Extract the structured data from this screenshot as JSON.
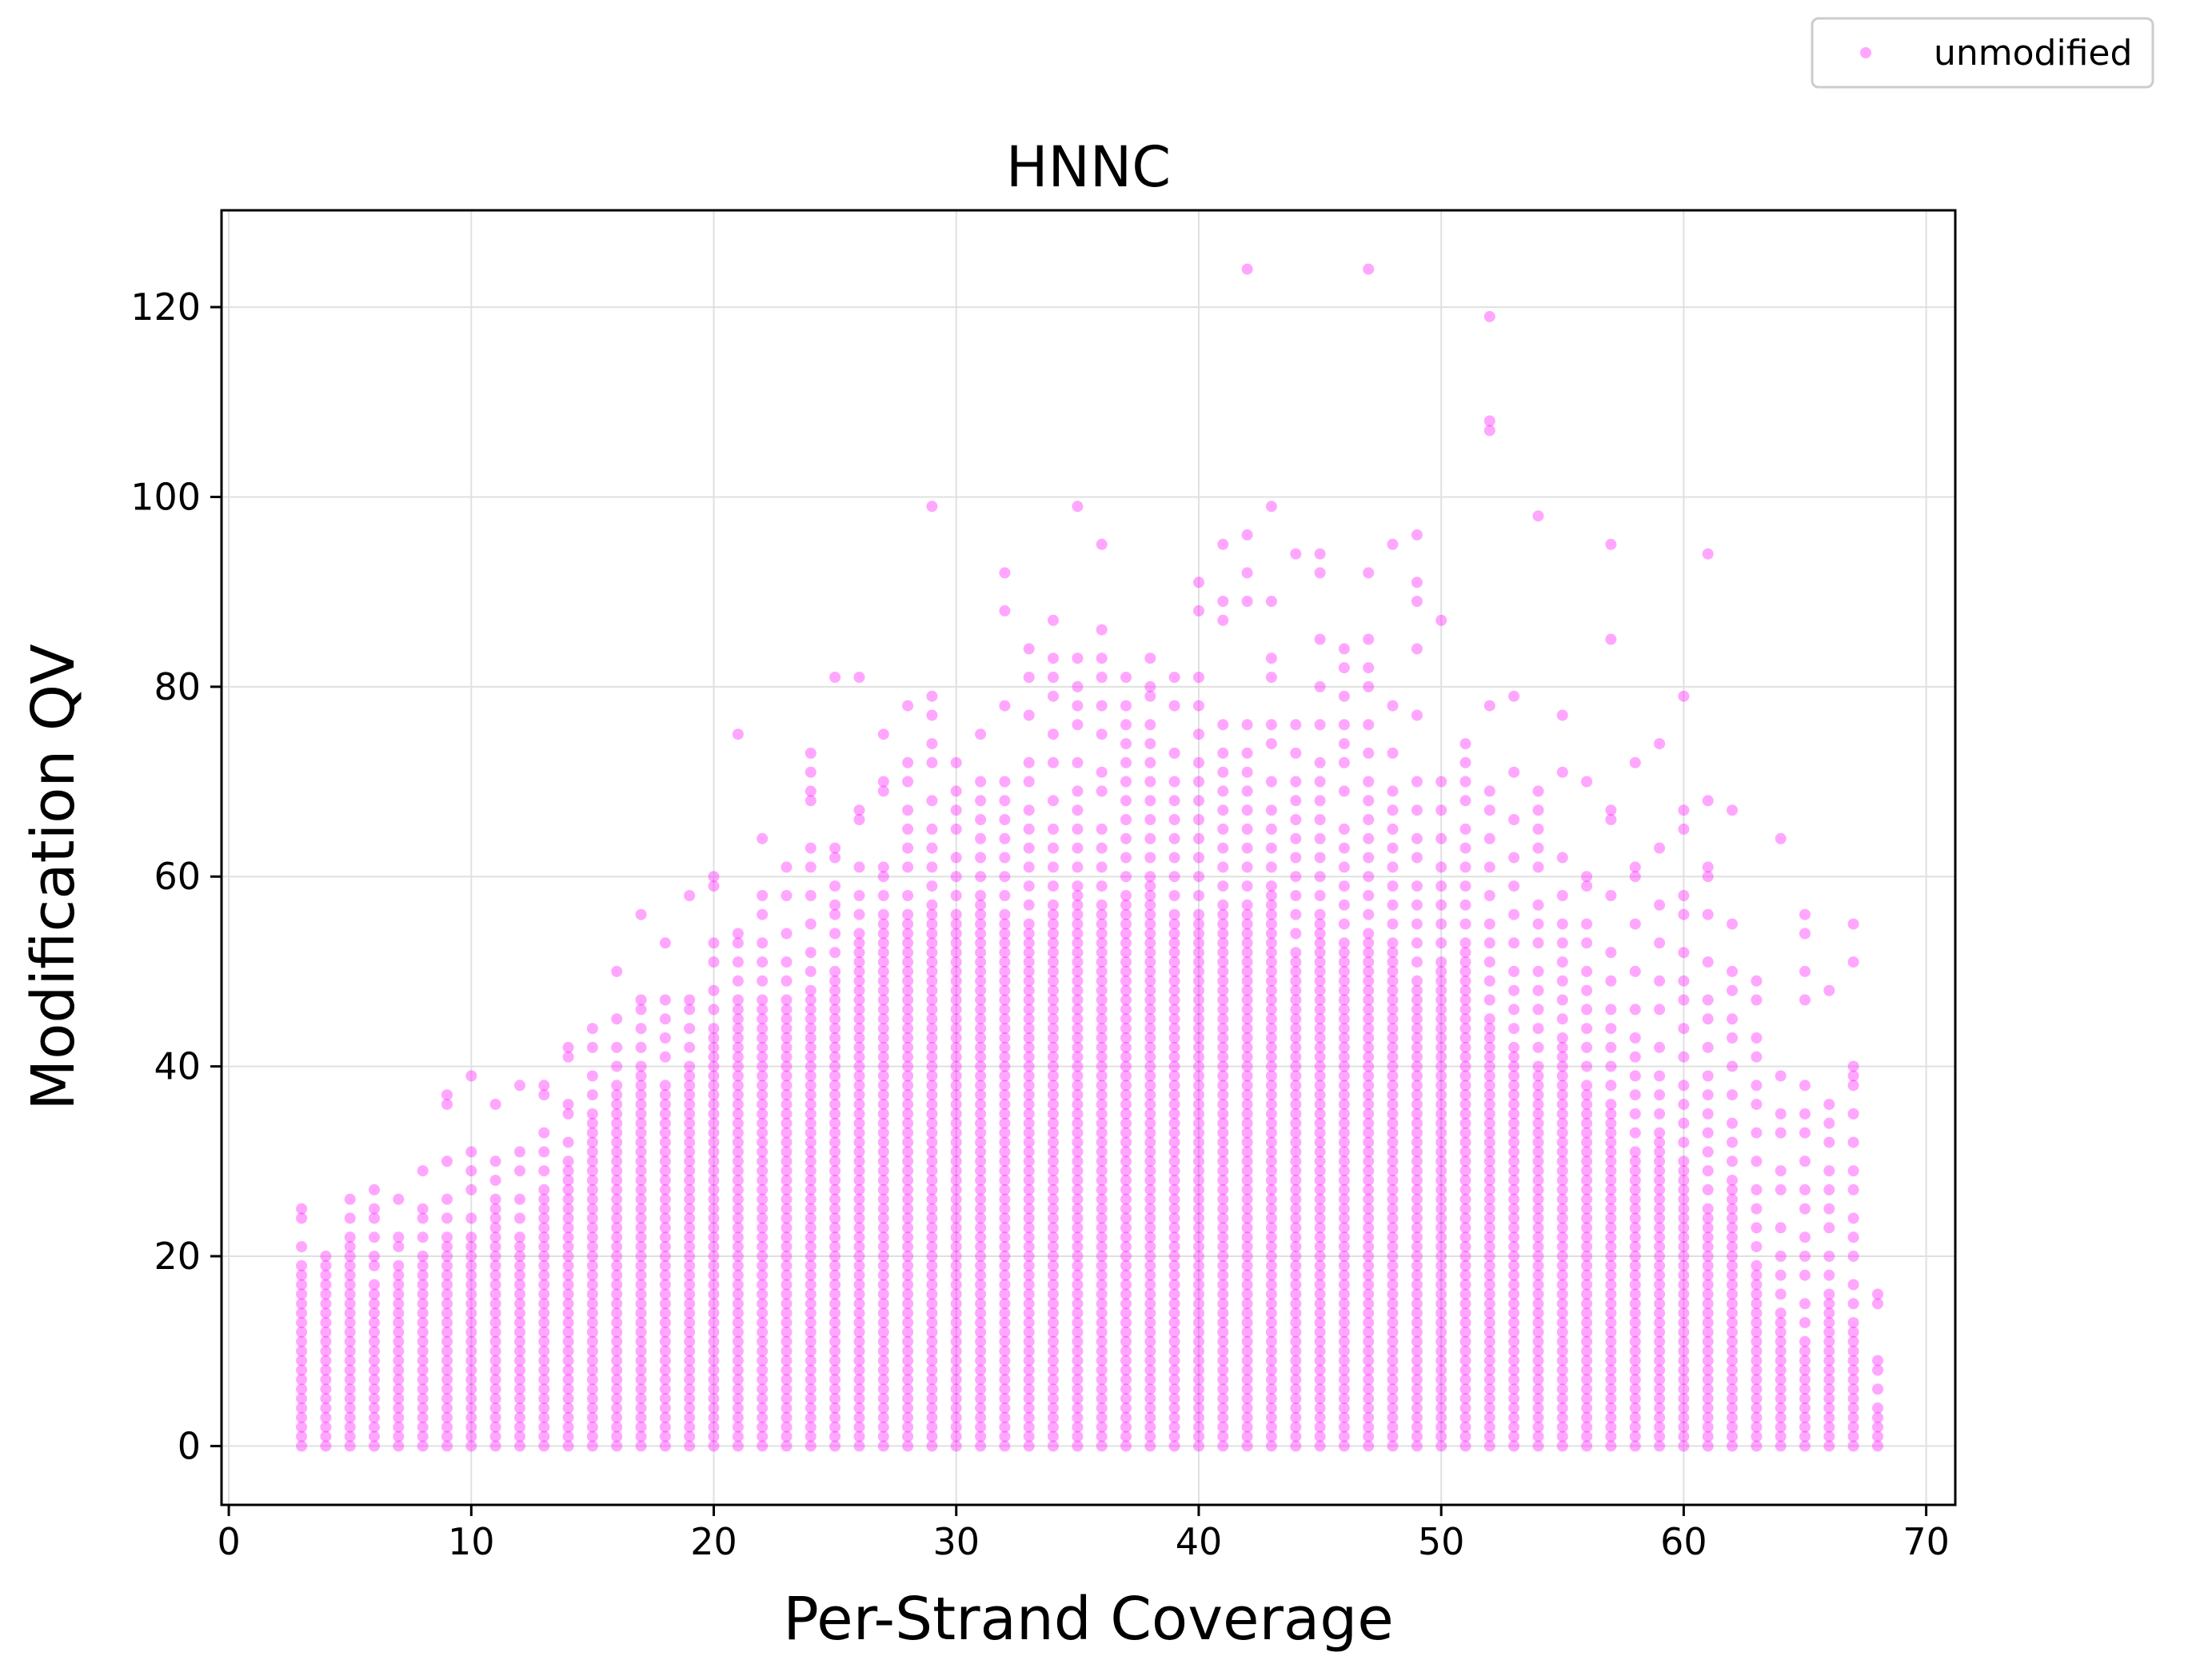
{
  "chart_data": {
    "type": "scatter",
    "title": "HNNC",
    "xlabel": "Per-Strand Coverage",
    "ylabel": "Modification QV",
    "xlim": [
      -0.3,
      71.2
    ],
    "ylim": [
      -6.2,
      130.2
    ],
    "xticks": [
      0,
      10,
      20,
      30,
      40,
      50,
      60,
      70
    ],
    "yticks": [
      0,
      20,
      40,
      60,
      80,
      100,
      120
    ],
    "grid": true,
    "legend": {
      "placement": "top-right, outside plot",
      "entries": [
        "unmodified"
      ]
    },
    "colors": {
      "series": "#ff00ff",
      "grid": "#e0e0e0",
      "axes": "#000000"
    },
    "series": [
      {
        "name": "unmodified",
        "marker": "circle",
        "alpha": 0.35,
        "columns": [
          {
            "x": 3,
            "dense_max": 19,
            "extra": [
              21,
              24,
              25
            ]
          },
          {
            "x": 4,
            "dense_max": 20,
            "extra": []
          },
          {
            "x": 5,
            "dense_max": 22,
            "extra": [
              24,
              26
            ]
          },
          {
            "x": 6,
            "dense_max": 17,
            "extra": [
              19,
              20,
              22,
              24,
              25,
              27
            ]
          },
          {
            "x": 7,
            "dense_max": 19,
            "extra": [
              21,
              22,
              26
            ]
          },
          {
            "x": 8,
            "dense_max": 20,
            "extra": [
              22,
              24,
              25,
              29
            ]
          },
          {
            "x": 9,
            "dense_max": 22,
            "extra": [
              24,
              26,
              30,
              36,
              37
            ]
          },
          {
            "x": 10,
            "dense_max": 22,
            "extra": [
              24,
              27,
              29,
              31,
              39
            ]
          },
          {
            "x": 11,
            "dense_max": 26,
            "extra": [
              28,
              30,
              36
            ]
          },
          {
            "x": 12,
            "dense_max": 22,
            "extra": [
              24,
              26,
              29,
              31,
              38
            ]
          },
          {
            "x": 13,
            "dense_max": 27,
            "extra": [
              29,
              31,
              33,
              37,
              38
            ]
          },
          {
            "x": 14,
            "dense_max": 30,
            "extra": [
              32,
              35,
              36,
              41,
              42
            ]
          },
          {
            "x": 15,
            "dense_max": 35,
            "extra": [
              37,
              39,
              42,
              44
            ]
          },
          {
            "x": 16,
            "dense_max": 38,
            "extra": [
              40,
              42,
              45,
              50
            ]
          },
          {
            "x": 17,
            "dense_max": 40,
            "extra": [
              42,
              44,
              46,
              47,
              56
            ]
          },
          {
            "x": 18,
            "dense_max": 38,
            "extra": [
              41,
              43,
              45,
              47,
              53
            ]
          },
          {
            "x": 19,
            "dense_max": 40,
            "extra": [
              42,
              44,
              46,
              47,
              58
            ]
          },
          {
            "x": 20,
            "dense_max": 44,
            "extra": [
              46,
              48,
              51,
              53,
              59,
              60
            ]
          },
          {
            "x": 21,
            "dense_max": 47,
            "extra": [
              49,
              51,
              53,
              54,
              75
            ]
          },
          {
            "x": 22,
            "dense_max": 47,
            "extra": [
              49,
              51,
              53,
              56,
              58,
              64
            ]
          },
          {
            "x": 23,
            "dense_max": 47,
            "extra": [
              49,
              51,
              54,
              58,
              61
            ]
          },
          {
            "x": 24,
            "dense_max": 48,
            "extra": [
              50,
              52,
              55,
              58,
              61,
              63,
              68,
              69,
              71,
              73
            ]
          },
          {
            "x": 25,
            "dense_max": 50,
            "extra": [
              52,
              54,
              56,
              57,
              59,
              62,
              63,
              81
            ]
          },
          {
            "x": 26,
            "dense_max": 54,
            "extra": [
              56,
              58,
              61,
              66,
              67,
              81
            ]
          },
          {
            "x": 27,
            "dense_max": 56,
            "extra": [
              58,
              60,
              61,
              69,
              70,
              75
            ]
          },
          {
            "x": 28,
            "dense_max": 56,
            "extra": [
              58,
              61,
              63,
              65,
              67,
              70,
              72,
              78
            ]
          },
          {
            "x": 29,
            "dense_max": 57,
            "extra": [
              59,
              61,
              63,
              65,
              68,
              72,
              74,
              77,
              79,
              99
            ]
          },
          {
            "x": 30,
            "dense_max": 56,
            "extra": [
              58,
              60,
              62,
              65,
              67,
              69,
              72
            ]
          },
          {
            "x": 31,
            "dense_max": 58,
            "extra": [
              60,
              62,
              64,
              66,
              68,
              70,
              75
            ]
          },
          {
            "x": 32,
            "dense_max": 56,
            "extra": [
              58,
              60,
              62,
              64,
              66,
              68,
              70,
              78,
              88,
              92
            ]
          },
          {
            "x": 33,
            "dense_max": 55,
            "extra": [
              57,
              59,
              61,
              63,
              65,
              67,
              70,
              72,
              77,
              81,
              84
            ]
          },
          {
            "x": 34,
            "dense_max": 57,
            "extra": [
              59,
              61,
              63,
              65,
              68,
              72,
              75,
              79,
              81,
              83,
              87
            ]
          },
          {
            "x": 35,
            "dense_max": 59,
            "extra": [
              61,
              63,
              65,
              67,
              69,
              72,
              76,
              78,
              80,
              83,
              99
            ]
          },
          {
            "x": 36,
            "dense_max": 57,
            "extra": [
              59,
              61,
              63,
              65,
              69,
              71,
              75,
              78,
              81,
              83,
              86,
              95
            ]
          },
          {
            "x": 37,
            "dense_max": 58,
            "extra": [
              60,
              62,
              64,
              66,
              68,
              70,
              72,
              74,
              76,
              78,
              81
            ]
          },
          {
            "x": 38,
            "dense_max": 60,
            "extra": [
              62,
              64,
              66,
              68,
              70,
              72,
              74,
              76,
              79,
              80,
              83
            ]
          },
          {
            "x": 39,
            "dense_max": 56,
            "extra": [
              58,
              60,
              62,
              64,
              66,
              68,
              70,
              73,
              78,
              81
            ]
          },
          {
            "x": 40,
            "dense_max": 56,
            "extra": [
              58,
              60,
              62,
              64,
              66,
              68,
              70,
              72,
              75,
              78,
              81,
              88,
              91
            ]
          },
          {
            "x": 41,
            "dense_max": 57,
            "extra": [
              59,
              61,
              63,
              65,
              67,
              69,
              71,
              73,
              76,
              87,
              89,
              95
            ]
          },
          {
            "x": 42,
            "dense_max": 57,
            "extra": [
              59,
              61,
              63,
              65,
              67,
              69,
              71,
              73,
              76,
              89,
              92,
              96,
              124
            ]
          },
          {
            "x": 43,
            "dense_max": 59,
            "extra": [
              61,
              63,
              65,
              67,
              70,
              74,
              76,
              81,
              83,
              89,
              99
            ]
          },
          {
            "x": 44,
            "dense_max": 52,
            "extra": [
              54,
              56,
              58,
              60,
              62,
              64,
              66,
              68,
              70,
              73,
              76,
              94
            ]
          },
          {
            "x": 45,
            "dense_max": 56,
            "extra": [
              58,
              60,
              62,
              64,
              66,
              68,
              70,
              72,
              76,
              80,
              85,
              92,
              94
            ]
          },
          {
            "x": 46,
            "dense_max": 53,
            "extra": [
              55,
              57,
              59,
              61,
              63,
              65,
              69,
              72,
              74,
              76,
              79,
              82,
              84
            ]
          },
          {
            "x": 47,
            "dense_max": 54,
            "extra": [
              56,
              58,
              60,
              62,
              64,
              66,
              68,
              70,
              73,
              76,
              80,
              82,
              85,
              92,
              124
            ]
          },
          {
            "x": 48,
            "dense_max": 53,
            "extra": [
              55,
              57,
              59,
              61,
              63,
              65,
              67,
              69,
              73,
              78,
              95
            ]
          },
          {
            "x": 49,
            "dense_max": 49,
            "extra": [
              51,
              53,
              55,
              57,
              59,
              62,
              64,
              67,
              70,
              77,
              84,
              89,
              91,
              96
            ]
          },
          {
            "x": 50,
            "dense_max": 51,
            "extra": [
              53,
              55,
              57,
              59,
              61,
              64,
              67,
              70,
              87
            ]
          },
          {
            "x": 51,
            "dense_max": 53,
            "extra": [
              55,
              57,
              59,
              61,
              63,
              65,
              68,
              70,
              72,
              74
            ]
          },
          {
            "x": 52,
            "dense_max": 45,
            "extra": [
              47,
              49,
              51,
              53,
              55,
              58,
              61,
              64,
              67,
              69,
              78,
              107,
              108,
              119
            ]
          },
          {
            "x": 53,
            "dense_max": 42,
            "extra": [
              44,
              46,
              48,
              50,
              53,
              56,
              59,
              62,
              66,
              71,
              79
            ]
          },
          {
            "x": 54,
            "dense_max": 40,
            "extra": [
              42,
              44,
              46,
              48,
              50,
              53,
              55,
              57,
              61,
              63,
              65,
              67,
              69,
              98
            ]
          },
          {
            "x": 55,
            "dense_max": 43,
            "extra": [
              45,
              47,
              49,
              51,
              53,
              55,
              58,
              62,
              71,
              77
            ]
          },
          {
            "x": 56,
            "dense_max": 38,
            "extra": [
              40,
              42,
              44,
              46,
              48,
              50,
              53,
              55,
              59,
              60,
              70
            ]
          },
          {
            "x": 57,
            "dense_max": 36,
            "extra": [
              38,
              40,
              42,
              44,
              46,
              49,
              52,
              58,
              66,
              67,
              85,
              95
            ]
          },
          {
            "x": 58,
            "dense_max": 31,
            "extra": [
              33,
              35,
              37,
              39,
              41,
              43,
              46,
              50,
              55,
              60,
              61,
              72
            ]
          },
          {
            "x": 59,
            "dense_max": 33,
            "extra": [
              35,
              37,
              39,
              42,
              46,
              49,
              53,
              57,
              63,
              74
            ]
          },
          {
            "x": 60,
            "dense_max": 30,
            "extra": [
              32,
              34,
              36,
              38,
              41,
              44,
              47,
              49,
              52,
              56,
              58,
              65,
              67,
              79
            ]
          },
          {
            "x": 61,
            "dense_max": 25,
            "extra": [
              27,
              29,
              31,
              33,
              35,
              37,
              39,
              42,
              45,
              47,
              51,
              56,
              60,
              61,
              68,
              94
            ]
          },
          {
            "x": 62,
            "dense_max": 28,
            "extra": [
              30,
              32,
              34,
              37,
              40,
              43,
              45,
              48,
              50,
              55,
              67
            ]
          },
          {
            "x": 63,
            "dense_max": 19,
            "extra": [
              21,
              23,
              25,
              27,
              30,
              33,
              36,
              38,
              41,
              43,
              47,
              49
            ]
          },
          {
            "x": 64,
            "dense_max": 14,
            "extra": [
              16,
              18,
              20,
              23,
              27,
              29,
              33,
              35,
              39,
              64
            ]
          },
          {
            "x": 65,
            "dense_max": 11,
            "extra": [
              13,
              15,
              18,
              20,
              22,
              25,
              27,
              30,
              33,
              35,
              38,
              47,
              50,
              54,
              56
            ]
          },
          {
            "x": 66,
            "dense_max": 16,
            "extra": [
              18,
              20,
              23,
              25,
              27,
              29,
              32,
              34,
              36,
              48
            ]
          },
          {
            "x": 67,
            "dense_max": 13,
            "extra": [
              15,
              17,
              20,
              22,
              24,
              27,
              29,
              32,
              35,
              38,
              39,
              40,
              51,
              55
            ]
          },
          {
            "x": 68,
            "dense_max": 4,
            "extra": [
              6,
              8,
              9,
              15,
              16
            ]
          }
        ]
      }
    ]
  }
}
